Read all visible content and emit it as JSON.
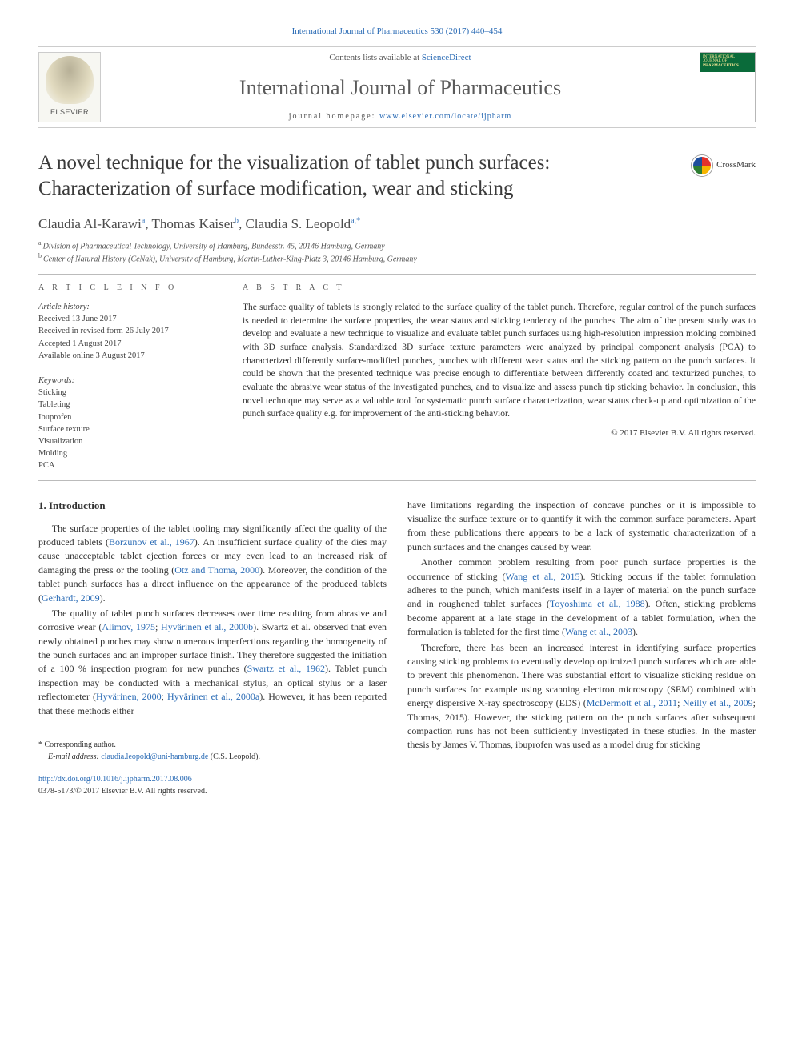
{
  "header": {
    "top_link": "International Journal of Pharmaceutics 530 (2017) 440–454",
    "contents_prefix": "Contents lists available at ",
    "contents_link": "ScienceDirect",
    "journal_name": "International Journal of Pharmaceutics",
    "homepage_prefix": "journal homepage: ",
    "homepage_url": "www.elsevier.com/locate/ijpharm",
    "elsevier_label": "ELSEVIER",
    "cover_top_line1": "INTERNATIONAL JOURNAL OF",
    "cover_top_line2": "PHARMACEUTICS",
    "crossmark_label": "CrossMark"
  },
  "article": {
    "title": "A novel technique for the visualization of tablet punch surfaces: Characterization of surface modification, wear and sticking",
    "authors_html": "Claudia Al-Karawi<sup>a</sup>, Thomas Kaiser<sup>b</sup>, Claudia S. Leopold<sup>a,*</sup>",
    "affiliations": [
      {
        "sup": "a",
        "text": "Division of Pharmaceutical Technology, University of Hamburg, Bundesstr. 45, 20146 Hamburg, Germany"
      },
      {
        "sup": "b",
        "text": "Center of Natural History (CeNak), University of Hamburg, Martin-Luther-King-Platz 3, 20146 Hamburg, Germany"
      }
    ]
  },
  "info": {
    "heading": "A R T I C L E   I N F O",
    "history_label": "Article history:",
    "history": [
      "Received 13 June 2017",
      "Received in revised form 26 July 2017",
      "Accepted 1 August 2017",
      "Available online 3 August 2017"
    ],
    "keywords_label": "Keywords:",
    "keywords": [
      "Sticking",
      "Tableting",
      "Ibuprofen",
      "Surface texture",
      "Visualization",
      "Molding",
      "PCA"
    ]
  },
  "abstract": {
    "heading": "A B S T R A C T",
    "text": "The surface quality of tablets is strongly related to the surface quality of the tablet punch. Therefore, regular control of the punch surfaces is needed to determine the surface properties, the wear status and sticking tendency of the punches. The aim of the present study was to develop and evaluate a new technique to visualize and evaluate tablet punch surfaces using high-resolution impression molding combined with 3D surface analysis. Standardized 3D surface texture parameters were analyzed by principal component analysis (PCA) to characterized differently surface-modified punches, punches with different wear status and the sticking pattern on the punch surfaces. It could be shown that the presented technique was precise enough to differentiate between differently coated and texturized punches, to evaluate the abrasive wear status of the investigated punches, and to visualize and assess punch tip sticking behavior. In conclusion, this novel technique may serve as a valuable tool for systematic punch surface characterization, wear status check-up and optimization of the punch surface quality e.g. for improvement of the anti-sticking behavior.",
    "copyright": "© 2017 Elsevier B.V. All rights reserved."
  },
  "body": {
    "section_heading": "1. Introduction",
    "paragraphs_left": [
      "The surface properties of the tablet tooling may significantly affect the quality of the produced tablets (<a>Borzunov et al., 1967</a>). An insufficient surface quality of the dies may cause unacceptable tablet ejection forces or may even lead to an increased risk of damaging the press or the tooling (<a>Otz and Thoma, 2000</a>). Moreover, the condition of the tablet punch surfaces has a direct influence on the appearance of the produced tablets (<a>Gerhardt, 2009</a>).",
      "The quality of tablet punch surfaces decreases over time resulting from abrasive and corrosive wear (<a>Alimov, 1975</a>; <a>Hyvärinen et al., 2000b</a>). Swartz et al. observed that even newly obtained punches may show numerous imperfections regarding the homogeneity of the punch surfaces and an improper surface finish. They therefore suggested the initiation of a 100 % inspection program for new punches (<a>Swartz et al., 1962</a>). Tablet punch inspection may be conducted with a mechanical stylus, an optical stylus or a laser reflectometer (<a>Hyvärinen, 2000</a>; <a>Hyvärinen et al., 2000a</a>). However, it has been reported that these methods either"
    ],
    "paragraphs_right": [
      "have limitations regarding the inspection of concave punches or it is impossible to visualize the surface texture or to quantify it with the common surface parameters. Apart from these publications there appears to be a lack of systematic characterization of a punch surfaces and the changes caused by wear.",
      "Another common problem resulting from poor punch surface properties is the occurrence of sticking (<a>Wang et al., 2015</a>). Sticking occurs if the tablet formulation adheres to the punch, which manifests itself in a layer of material on the punch surface and in roughened tablet surfaces (<a>Toyoshima et al., 1988</a>). Often, sticking problems become apparent at a late stage in the development of a tablet formulation, when the formulation is tableted for the first time (<a>Wang et al., 2003</a>).",
      "Therefore, there has been an increased interest in identifying surface properties causing sticking problems to eventually develop optimized punch surfaces which are able to prevent this phenomenon. There was substantial effort to visualize sticking residue on punch surfaces for example using scanning electron microscopy (SEM) combined with energy dispersive X-ray spectroscopy (EDS) (<a>McDermott et al., 2011</a>; <a>Neilly et al., 2009</a>; Thomas, 2015). However, the sticking pattern on the punch surfaces after subsequent compaction runs has not been sufficiently investigated in these studies. In the master thesis by James V. Thomas, ibuprofen was used as a model drug for sticking"
    ]
  },
  "footnotes": {
    "corr_label": "* Corresponding author.",
    "email_label": "E-mail address: ",
    "email": "claudia.leopold@uni-hamburg.de",
    "email_suffix": " (C.S. Leopold)."
  },
  "doi": {
    "url": "http://dx.doi.org/10.1016/j.ijpharm.2017.08.006",
    "issn_line": "0378-5173/© 2017 Elsevier B.V. All rights reserved."
  },
  "colors": {
    "link": "#2a6bb5",
    "text": "#333333",
    "rule": "#bbbbbb",
    "cover_green": "#0a6b3a"
  }
}
